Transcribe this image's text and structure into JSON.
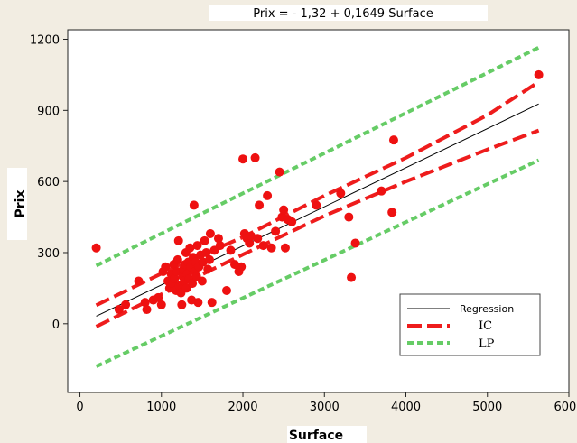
{
  "chart_data": {
    "type": "scatter",
    "title": "Prix =  - 1,32 + 0,1649 Surface",
    "xlabel": "Surface",
    "ylabel": "Prix",
    "xlim": [
      -150,
      6000
    ],
    "ylim": [
      -290,
      1240
    ],
    "x_ticks": [
      0,
      1000,
      2000,
      3000,
      4000,
      5000,
      6000
    ],
    "y_ticks": [
      0,
      300,
      600,
      900,
      1200
    ],
    "x_tick_labels": [
      "0",
      "1000",
      "2000",
      "3000",
      "4000",
      "5000",
      "6000"
    ],
    "y_tick_labels": [
      "0",
      "300",
      "600",
      "900",
      "1200"
    ],
    "grid": false,
    "legend_position": "bottom-right",
    "legend": [
      {
        "label": "Regression",
        "color": "#000000",
        "style": "solid"
      },
      {
        "label": "IC",
        "color": "#ee1c1c",
        "style": "long-dash"
      },
      {
        "label": "LP",
        "color": "#66cc66",
        "style": "short-dash"
      }
    ],
    "regression": {
      "intercept": -1.32,
      "slope": 0.1649,
      "x_range": [
        200,
        5630
      ]
    },
    "ci_lower": {
      "x": [
        200,
        1300,
        2000,
        3000,
        4000,
        5000,
        5630
      ],
      "y": [
        -12,
        175,
        292,
        455,
        600,
        735,
        815
      ]
    },
    "ci_upper": {
      "x": [
        200,
        1300,
        2000,
        3000,
        4000,
        5000,
        5630
      ],
      "y": [
        78,
        262,
        365,
        540,
        700,
        880,
        1020
      ]
    },
    "pi_lower": {
      "x": [
        200,
        5630
      ],
      "y": [
        -180,
        690
      ]
    },
    "pi_upper": {
      "x": [
        200,
        5630
      ],
      "y": [
        245,
        1165
      ]
    },
    "points": [
      {
        "x": 200,
        "y": 320
      },
      {
        "x": 480,
        "y": 60
      },
      {
        "x": 560,
        "y": 80
      },
      {
        "x": 720,
        "y": 180
      },
      {
        "x": 800,
        "y": 90
      },
      {
        "x": 820,
        "y": 60
      },
      {
        "x": 900,
        "y": 100
      },
      {
        "x": 960,
        "y": 110
      },
      {
        "x": 1000,
        "y": 80
      },
      {
        "x": 1020,
        "y": 220
      },
      {
        "x": 1050,
        "y": 240
      },
      {
        "x": 1080,
        "y": 180
      },
      {
        "x": 1100,
        "y": 150
      },
      {
        "x": 1120,
        "y": 210
      },
      {
        "x": 1140,
        "y": 170
      },
      {
        "x": 1150,
        "y": 250
      },
      {
        "x": 1160,
        "y": 190
      },
      {
        "x": 1180,
        "y": 140
      },
      {
        "x": 1190,
        "y": 220
      },
      {
        "x": 1200,
        "y": 270
      },
      {
        "x": 1210,
        "y": 350
      },
      {
        "x": 1220,
        "y": 160
      },
      {
        "x": 1240,
        "y": 130
      },
      {
        "x": 1250,
        "y": 80
      },
      {
        "x": 1260,
        "y": 200
      },
      {
        "x": 1270,
        "y": 230
      },
      {
        "x": 1280,
        "y": 180
      },
      {
        "x": 1290,
        "y": 250
      },
      {
        "x": 1300,
        "y": 300
      },
      {
        "x": 1310,
        "y": 150
      },
      {
        "x": 1320,
        "y": 210
      },
      {
        "x": 1330,
        "y": 260
      },
      {
        "x": 1340,
        "y": 190
      },
      {
        "x": 1350,
        "y": 320
      },
      {
        "x": 1360,
        "y": 240
      },
      {
        "x": 1370,
        "y": 100
      },
      {
        "x": 1380,
        "y": 170
      },
      {
        "x": 1390,
        "y": 280
      },
      {
        "x": 1400,
        "y": 500
      },
      {
        "x": 1410,
        "y": 220
      },
      {
        "x": 1420,
        "y": 260
      },
      {
        "x": 1430,
        "y": 200
      },
      {
        "x": 1440,
        "y": 330
      },
      {
        "x": 1450,
        "y": 90
      },
      {
        "x": 1460,
        "y": 240
      },
      {
        "x": 1480,
        "y": 290
      },
      {
        "x": 1500,
        "y": 180
      },
      {
        "x": 1510,
        "y": 260
      },
      {
        "x": 1530,
        "y": 350
      },
      {
        "x": 1550,
        "y": 300
      },
      {
        "x": 1570,
        "y": 230
      },
      {
        "x": 1590,
        "y": 270
      },
      {
        "x": 1600,
        "y": 380
      },
      {
        "x": 1620,
        "y": 90
      },
      {
        "x": 1650,
        "y": 310
      },
      {
        "x": 1700,
        "y": 360
      },
      {
        "x": 1720,
        "y": 330
      },
      {
        "x": 1800,
        "y": 140
      },
      {
        "x": 1850,
        "y": 310
      },
      {
        "x": 1900,
        "y": 250
      },
      {
        "x": 1950,
        "y": 220
      },
      {
        "x": 1980,
        "y": 240
      },
      {
        "x": 2000,
        "y": 695
      },
      {
        "x": 2020,
        "y": 380
      },
      {
        "x": 2050,
        "y": 360
      },
      {
        "x": 2080,
        "y": 340
      },
      {
        "x": 2100,
        "y": 370
      },
      {
        "x": 2150,
        "y": 700
      },
      {
        "x": 2180,
        "y": 360
      },
      {
        "x": 2200,
        "y": 500
      },
      {
        "x": 2250,
        "y": 330
      },
      {
        "x": 2300,
        "y": 540
      },
      {
        "x": 2350,
        "y": 320
      },
      {
        "x": 2400,
        "y": 390
      },
      {
        "x": 2450,
        "y": 640
      },
      {
        "x": 2480,
        "y": 450
      },
      {
        "x": 2500,
        "y": 480
      },
      {
        "x": 2520,
        "y": 320
      },
      {
        "x": 2550,
        "y": 440
      },
      {
        "x": 2600,
        "y": 430
      },
      {
        "x": 2900,
        "y": 500
      },
      {
        "x": 3200,
        "y": 550
      },
      {
        "x": 3300,
        "y": 450
      },
      {
        "x": 3330,
        "y": 195
      },
      {
        "x": 3380,
        "y": 340
      },
      {
        "x": 3700,
        "y": 560
      },
      {
        "x": 3830,
        "y": 470
      },
      {
        "x": 3850,
        "y": 775
      },
      {
        "x": 5630,
        "y": 1050
      }
    ]
  }
}
